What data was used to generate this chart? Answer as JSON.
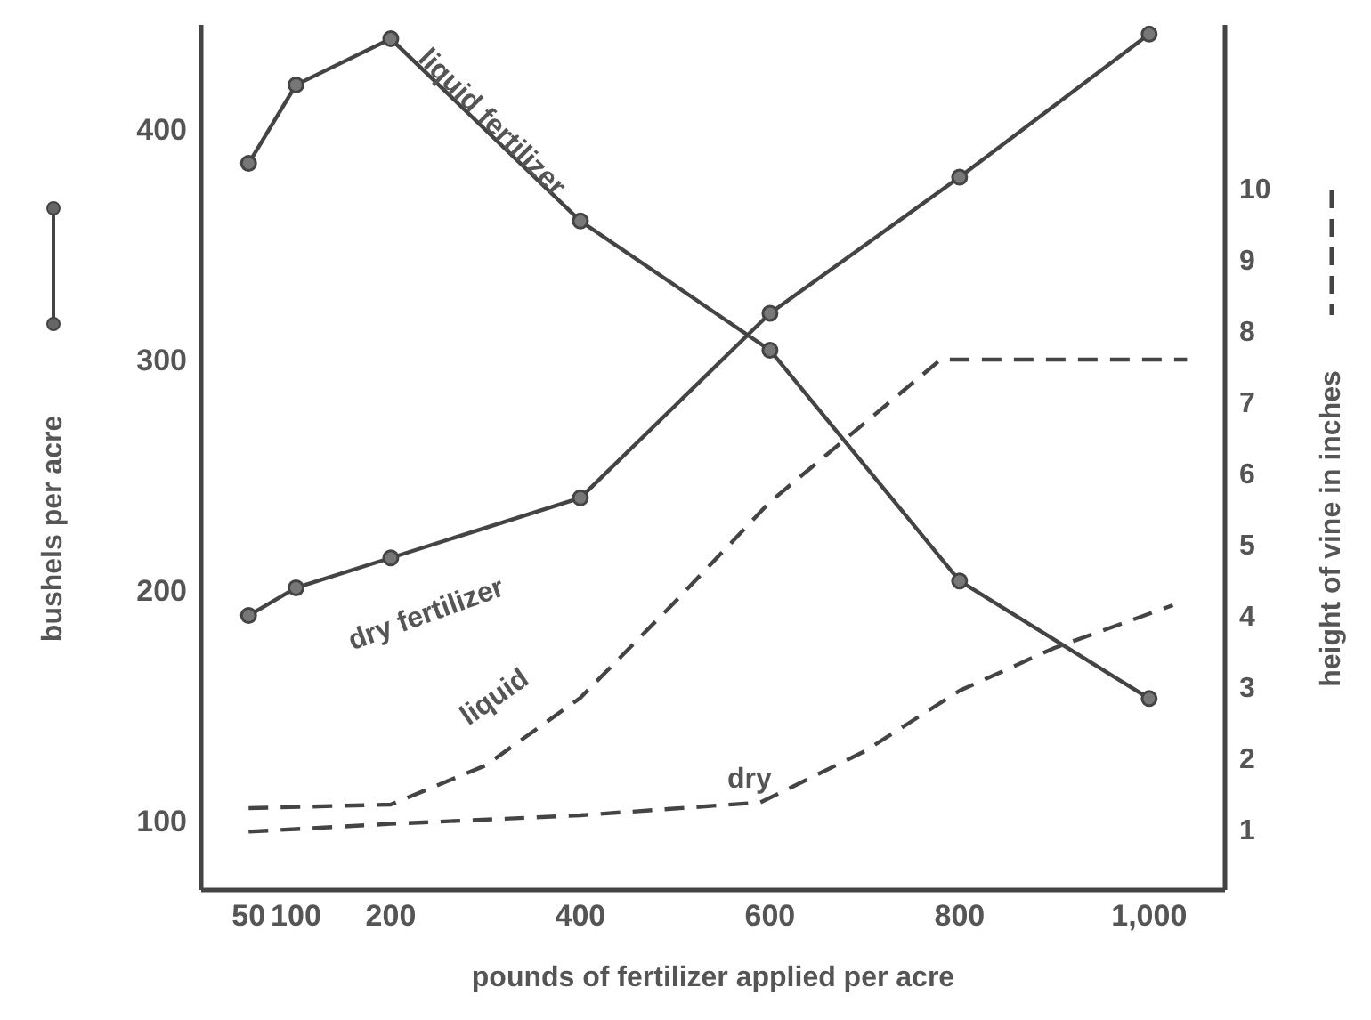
{
  "chart_data": {
    "type": "line",
    "xlabel": "pounds of fertilizer applied per acre",
    "ylabel": "bushels per acre",
    "y2label": "height of vine in inches",
    "xlim": [
      0,
      1080
    ],
    "xticks": [
      50,
      100,
      200,
      400,
      600,
      800,
      {
        "value": 1000,
        "label": "1,000"
      }
    ],
    "ylim": [
      70,
      445
    ],
    "yticks": [
      100,
      200,
      300,
      400
    ],
    "y2lim": [
      0.15,
      12.3
    ],
    "y2ticks": [
      1,
      2,
      3,
      4,
      5,
      6,
      7,
      8,
      9,
      10
    ],
    "series": [
      {
        "name": "liquid fertilizer",
        "color": "#444444",
        "marker": "circle",
        "line_style": "solid",
        "x": [
          50,
          100,
          200,
          400,
          600,
          800,
          1000
        ],
        "values": [
          385,
          419,
          439,
          360,
          304,
          204,
          153
        ]
      },
      {
        "name": "dry fertilizer",
        "color": "#444444",
        "marker": "circle",
        "line_style": "solid",
        "x": [
          50,
          100,
          200,
          400,
          600,
          800,
          1000
        ],
        "values": [
          189,
          201,
          214,
          240,
          320,
          379,
          441
        ]
      },
      {
        "name": "liquid",
        "color": "#444444",
        "marker": "none",
        "line_style": "dashed",
        "axis": "y2",
        "x": [
          50,
          200,
          300,
          400,
          500,
          600,
          780,
          1040
        ],
        "values": [
          1.3,
          1.35,
          1.9,
          2.85,
          4.2,
          5.6,
          7.6,
          7.6
        ]
      },
      {
        "name": "dry",
        "color": "#444444",
        "marker": "none",
        "line_style": "dashed",
        "axis": "y2",
        "x": [
          50,
          200,
          400,
          590,
          700,
          800,
          900,
          1025
        ],
        "values": [
          0.97,
          1.08,
          1.2,
          1.38,
          2.1,
          2.95,
          3.55,
          4.15
        ]
      }
    ]
  }
}
